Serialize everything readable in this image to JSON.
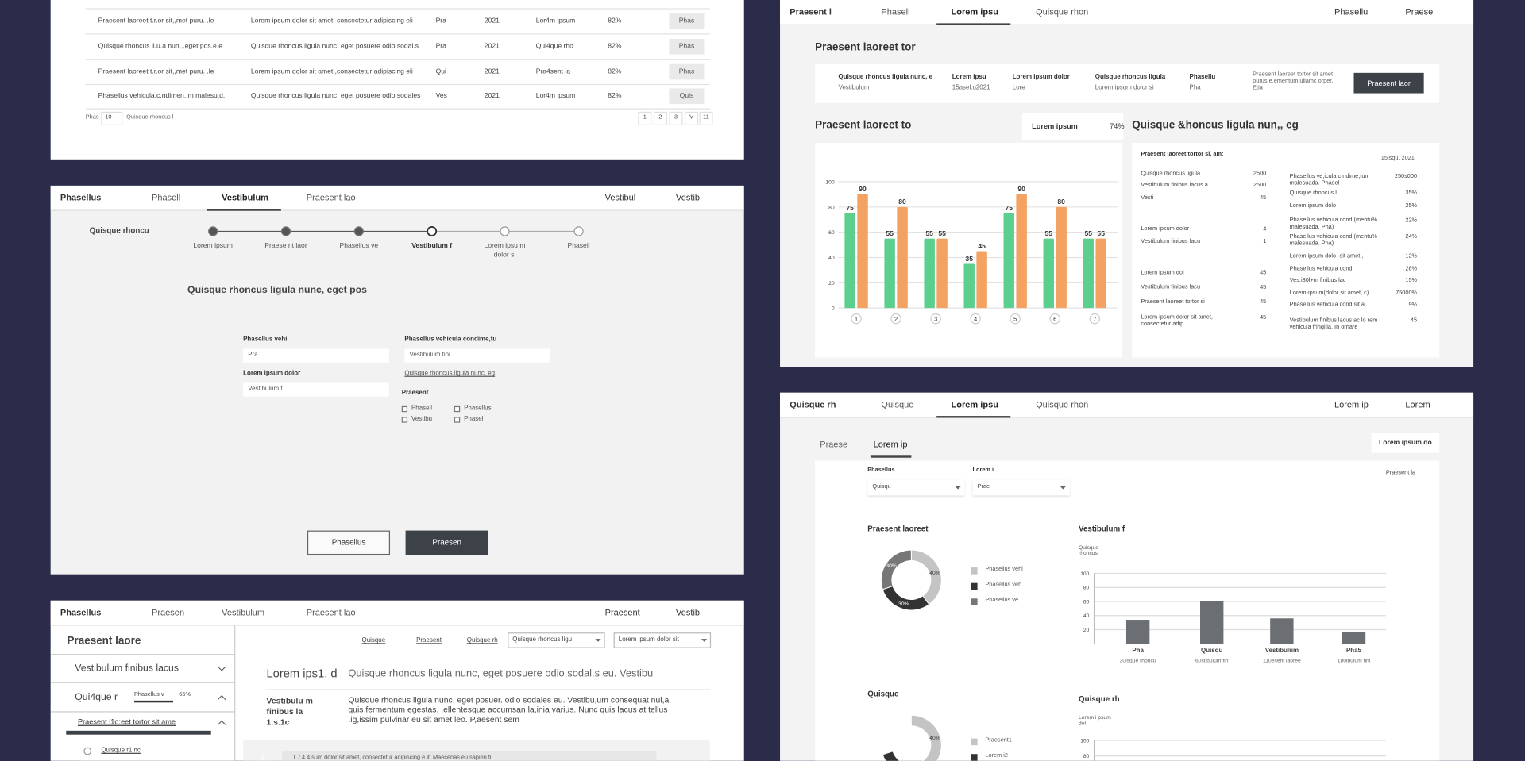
{
  "p1": {
    "rows": [
      [
        "Praesent laoreet t.r.or sit,,met puru. .le",
        "Lorem ipsum dolor sit amet, consectetur adipiscing eli",
        "Pra",
        "2021",
        "Lor4m ipsum",
        "82%",
        "Phas"
      ],
      [
        "Quisque rhoncus li.u.a nun,,.eget pos.e.e",
        "Quisque rhoncus ligula nunc, eget posuere odio sodal.s",
        "Pra",
        "2021",
        "Qui4que rho",
        "82%",
        "Phas"
      ],
      [
        "Praesent laoreet t.r.or sit,,met puru. .le",
        "Lorem ipsum dolor sit amet,,consectetur adipiscing eli",
        "Qui",
        "2021",
        "Pra4sent la",
        "82%",
        "Phas"
      ],
      [
        "Phasellus vehicula.c.ndimen,,m malesu.d..",
        "Quisque rhoncus ligula nunc, eget posuere odio sodales",
        "Ves",
        "2021",
        "Lor4m ipsum",
        "82%",
        "Quis"
      ]
    ],
    "footer": {
      "label": "Phas",
      "page_size": "10",
      "info": "Quisque rhoncus l",
      "pages": [
        "1",
        "2",
        "3",
        "V",
        "11"
      ]
    }
  },
  "p2": {
    "nav": {
      "brand": "Phasellus",
      "tabs": [
        "Phasell",
        "Vestibulum",
        "Praesent lao"
      ],
      "active_tab": 1,
      "menu": "Vestibul",
      "user": "Vestib"
    },
    "stepper": {
      "label": "Quisque rhoncu",
      "steps": [
        "Lorem ipsum",
        "Praese nt laor",
        "Phasellus ve",
        "Vestibulum f",
        "Lorem ipsu m dolor si",
        "Phasell"
      ],
      "current_step": 3
    },
    "heading": "Quisque rhoncus ligula nunc, eget pos",
    "fields": [
      {
        "label": "Phasellus vehi",
        "value": "Pra"
      },
      {
        "label": "Lorem ipsum dolor",
        "value": "Vestibulum f"
      },
      {
        "label": "Phasellus vehicula condime,tu",
        "value": "Vestibulum fini"
      }
    ],
    "link": "Quisque rhoncus ligula nunc, eg",
    "group": {
      "label": "Praesent",
      "options": [
        "Phasell",
        "Phasellus",
        "Vestibu",
        "Phasel"
      ]
    },
    "buttons": [
      "Phasellus",
      "Praesen"
    ]
  },
  "p3": {
    "nav": {
      "brand": "Phasellus",
      "tabs": [
        "Praesen",
        "Vestibulum",
        "Praesent lao"
      ],
      "active_tab": -1,
      "menu": "Praesent",
      "user": "Vestib"
    },
    "sidebar": {
      "title": "Praesent laore",
      "items": [
        "Vestibulum finibus lacus",
        "Qui4que r"
      ],
      "progress_label": "Phasellus v",
      "progress": "65%",
      "sub_item": "Praesent l1o:eet tortor sit ame",
      "leaf": "Quisque r1.nc"
    },
    "toolbar": {
      "actions": [
        "Quisque",
        "Praesent",
        "Quisque rh"
      ],
      "selects": [
        "Quisque rhoncus ligu",
        "Lorem ipsum dolor sit"
      ]
    },
    "content": {
      "title": "Lorem ips1. d",
      "subtitle": "Quisque rhoncus ligula nunc, eget posuere odio sodal.s eu. Vestibu",
      "side_label": "Vestibulu m finibus la 1.s.1c",
      "paragraph": "Quisque rhoncus ligula nunc, eget posuer. odio sodales eu. Vestibu,um consequat nul,a quis fermentum egestas. .ellentesque accumsan la,inia varius. Nunc quis lacus at tellus .ig,issim pulvinar eu sit amet leo. P,aesent sem",
      "step": "2",
      "step_text": "L.r.4 4.sum dolor sit amet, consectetur adipiscing e.it. Maecenas eu sapien fi"
    }
  },
  "p4": {
    "nav": {
      "brand": "Praesent l",
      "tabs": [
        "Phasell",
        "Lorem ipsu",
        "Quisque rhon"
      ],
      "active_tab": 1,
      "menu": "Phasellu",
      "user": "Praese"
    },
    "summary": {
      "title": "Praesent laoreet tor",
      "columns": [
        {
          "label": "Quisque rhoncus ligula nunc, e",
          "value": "Vestibulum"
        },
        {
          "label": "Lorem ipsu",
          "value": "15asel.u2021"
        },
        {
          "label": "Lorem ipsum dolor",
          "value": "Lore"
        },
        {
          "label": "Quisque rhoncus ligula",
          "value": "Lorem ipsum dolor si"
        },
        {
          "label": "Phasellu",
          "value": "Pha"
        }
      ],
      "note": "Praesent laoreet tortor sit amet purus e.ementum ullamc orper. Etia",
      "button": "Praesent laor"
    },
    "badge": {
      "label": "Lorem ipsum",
      "value": "74%"
    },
    "details": {
      "title": "Quisque &honcus ligula nun,, eg",
      "header": "Praesent laoreet tortor si, am:",
      "date": "15isqu. 2021",
      "left": [
        {
          "label": "Quisque rhoncus ligula",
          "value": "2500"
        },
        {
          "label": "Vestibulum finibus lacus a",
          "value": "2500"
        },
        {
          "label": "Vesti",
          "value": "45"
        },
        {
          "label": "Lorem ipsum dolor",
          "value": "4"
        },
        {
          "label": "Vestibulum finibus lacu",
          "value": "1"
        },
        {
          "label": "Lorem ipsum dol",
          "value": "45"
        },
        {
          "label": "Vestibulum finibus lacu",
          "value": "45"
        },
        {
          "label": "Praesent laoreet tortor si",
          "value": "45"
        },
        {
          "label": "Lorem ipsum dolor sit amet, consectetur adip",
          "value": "45"
        }
      ],
      "right": [
        {
          "label": "Phasellus ve,icula c,ndime,tum malesuada. Phasel",
          "value": "250s000"
        },
        {
          "label": "Quisque rhoncus l",
          "value": "35%"
        },
        {
          "label": "Lorem ipsum dolo",
          "value": "25%"
        },
        {
          "label": "Phasellus vehicula cond (mentu% malesuada. Pha)",
          "value": "22%"
        },
        {
          "label": "Phasellus vehicula cond (mentu% malesuada. Pha)",
          "value": "24%"
        },
        {
          "label": "Lorem ipsum dolo- sit amet,,",
          "value": "12%"
        },
        {
          "label": "Phasellus vehicula cond",
          "value": "28%"
        },
        {
          "label": "Ves.i30l+m finibus lac",
          "value": "15%"
        },
        {
          "label": "Lorem-ipsum(dolor sit amet, c)",
          "value": "75000%"
        },
        {
          "label": "Phasellus vehicula cond sit a",
          "value": "9%"
        },
        {
          "label": "Vestibulum finibus lacus ac lo rem vehicula fringilla. In ornare",
          "value": "45"
        }
      ]
    }
  },
  "p5": {
    "nav": {
      "brand": "Quisque rh",
      "tabs": [
        "Quisque",
        "Lorem ipsu",
        "Quisque rhon"
      ],
      "active_tab": 1,
      "menu": "Lorem ip",
      "user": "Lorem"
    },
    "subtabs": [
      "Praese",
      "Lorem ip"
    ],
    "active_subtab": 1,
    "button": "Lorem ipsum do",
    "filters": [
      {
        "label": "Phasellus",
        "value": "Quisqu"
      },
      {
        "label": "Lorem i",
        "value": "Prae"
      }
    ],
    "export": "Praesent la"
  },
  "chart_data": [
    {
      "type": "bar",
      "title": "Praesent laoreet to",
      "categories": [
        "1",
        "2",
        "3",
        "4",
        "5",
        "6",
        "7"
      ],
      "series": [
        {
          "color": "#5ccf8e",
          "values": [
            75,
            55,
            55,
            35,
            75,
            55,
            55
          ]
        },
        {
          "color": "#f4a261",
          "values": [
            90,
            80,
            55,
            45,
            90,
            80,
            55
          ]
        }
      ],
      "ylim": [
        0,
        100
      ],
      "yticks": [
        0,
        20,
        40,
        60,
        80,
        100
      ],
      "grid": true
    },
    {
      "type": "pie",
      "title": "Praesent laoreet",
      "donut": true,
      "categories": [
        "Phasellus vehi",
        "Phasellus veh",
        "Phasellus ve"
      ],
      "values": [
        40,
        30,
        30
      ],
      "value_labels": [
        "40%",
        "30%",
        "30%"
      ],
      "colors": [
        "#c4c4c4",
        "#333333",
        "#777777"
      ]
    },
    {
      "type": "bar",
      "title": "Vestibulum f",
      "ylabel": "Quisque rhoncus",
      "categories": [
        "Pha",
        "Quisqu",
        "Vestibulum",
        "Pha5"
      ],
      "sublabels": [
        "30isque rhoncu",
        "60stibulum fin",
        "110esent laoree",
        "180ibulum fini"
      ],
      "values": [
        34,
        61,
        36,
        17
      ],
      "color": "#6b6e73",
      "ylim": [
        0,
        100
      ],
      "yticks": [
        20,
        40,
        60,
        80,
        100
      ],
      "grid": true
    },
    {
      "type": "pie",
      "title": "Quisque",
      "donut": true,
      "categories": [
        "Praesent1",
        "Lorem i2"
      ],
      "values": [
        40,
        30
      ],
      "value_labels": [
        "40%",
        "30%"
      ],
      "colors": [
        "#c4c4c4",
        "#333333"
      ]
    },
    {
      "type": "bar",
      "title": "Quisque rh",
      "ylabel": "Lorem i psum dol",
      "ylim": [
        0,
        100
      ],
      "yticks": [
        80,
        100
      ],
      "grid": true
    }
  ]
}
